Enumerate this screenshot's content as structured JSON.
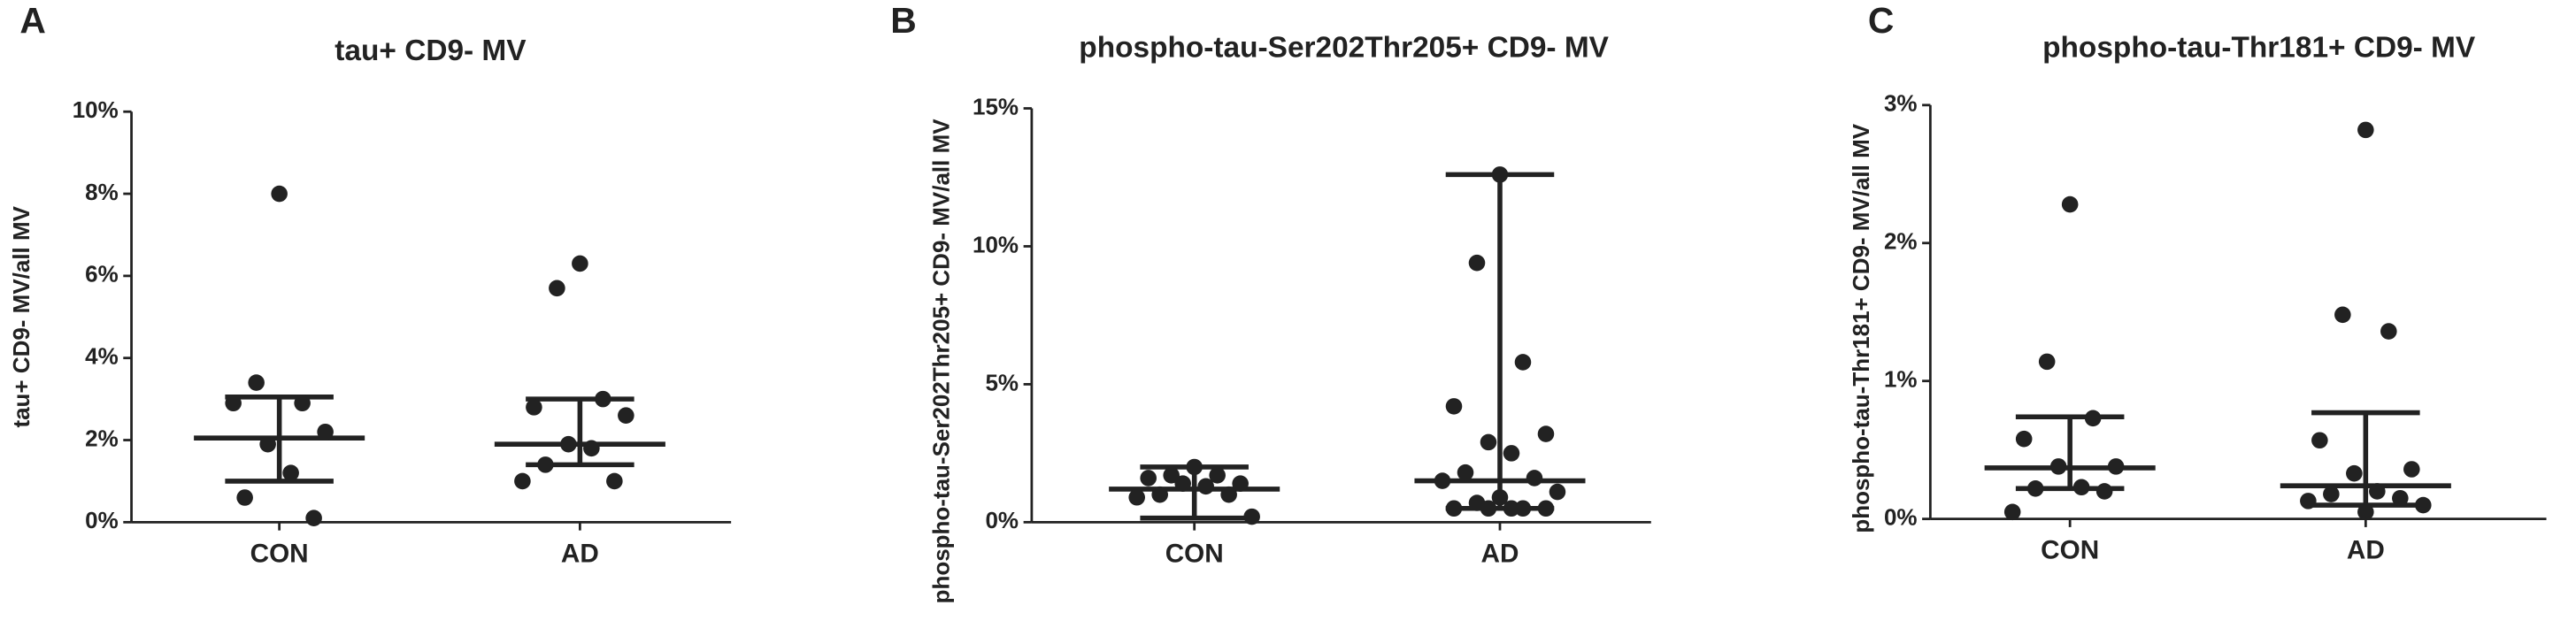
{
  "chart_data": [
    {
      "type": "dotplot",
      "panel_label": "A",
      "title": "tau+ CD9- MV",
      "y_label": "tau+ CD9- MV/all MV",
      "color": "#222222",
      "ylim": [
        0,
        10
      ],
      "yticks": [
        {
          "value": 0,
          "label": "0%"
        },
        {
          "value": 2,
          "label": "2%"
        },
        {
          "value": 4,
          "label": "4%"
        },
        {
          "value": 6,
          "label": "6%"
        },
        {
          "value": 8,
          "label": "8%"
        },
        {
          "value": 10,
          "label": "10%"
        }
      ],
      "series": [
        {
          "name": "CON",
          "values": [
            8.0,
            3.4,
            2.9,
            2.9,
            2.2,
            1.9,
            1.2,
            0.6,
            0.1
          ],
          "median": 2.05,
          "error_low": 1.0,
          "error_high": 3.05
        },
        {
          "name": "AD",
          "values": [
            6.3,
            5.7,
            3.0,
            2.8,
            2.6,
            1.9,
            1.8,
            1.4,
            1.0,
            1.0
          ],
          "median": 1.9,
          "error_low": 1.4,
          "error_high": 3.0
        }
      ]
    },
    {
      "type": "dotplot",
      "panel_label": "B",
      "title": "phospho-tau-Ser202Thr205+ CD9-  MV",
      "y_label": "phospho-tau-Ser202Thr205+ CD9-  MV/all MV",
      "color": "#222222",
      "ylim": [
        0,
        15
      ],
      "yticks": [
        {
          "value": 0,
          "label": "0%"
        },
        {
          "value": 5,
          "label": "5%"
        },
        {
          "value": 10,
          "label": "10%"
        },
        {
          "value": 15,
          "label": "15%"
        }
      ],
      "series": [
        {
          "name": "CON",
          "values": [
            2.0,
            1.7,
            1.7,
            1.6,
            1.4,
            1.4,
            1.3,
            1.0,
            1.0,
            0.9,
            0.2
          ],
          "median": 1.2,
          "error_low": 0.15,
          "error_high": 2.0
        },
        {
          "name": "AD",
          "values": [
            12.6,
            9.4,
            5.8,
            4.2,
            3.2,
            2.9,
            2.5,
            1.8,
            1.6,
            1.5,
            1.1,
            0.9,
            0.7,
            0.5,
            0.5,
            0.5,
            0.5,
            0.5
          ],
          "median": 1.5,
          "error_low": 0.5,
          "error_high": 12.6
        }
      ]
    },
    {
      "type": "dotplot",
      "panel_label": "C",
      "title": "phospho-tau-Thr181+ CD9- MV",
      "y_label": "phospho-tau-Thr181+ CD9- MV/all  MV",
      "color": "#222222",
      "ylim": [
        0,
        3
      ],
      "yticks": [
        {
          "value": 0,
          "label": "0%"
        },
        {
          "value": 1,
          "label": "1%"
        },
        {
          "value": 2,
          "label": "2%"
        },
        {
          "value": 3,
          "label": "3%"
        }
      ],
      "series": [
        {
          "name": "CON",
          "values": [
            2.28,
            1.14,
            0.73,
            0.58,
            0.38,
            0.38,
            0.23,
            0.22,
            0.2,
            0.05
          ],
          "median": 0.37,
          "error_low": 0.22,
          "error_high": 0.74
        },
        {
          "name": "AD",
          "values": [
            2.82,
            1.48,
            1.36,
            0.57,
            0.36,
            0.33,
            0.2,
            0.18,
            0.15,
            0.13,
            0.1,
            0.05
          ],
          "median": 0.24,
          "error_low": 0.1,
          "error_high": 0.77
        }
      ]
    }
  ]
}
